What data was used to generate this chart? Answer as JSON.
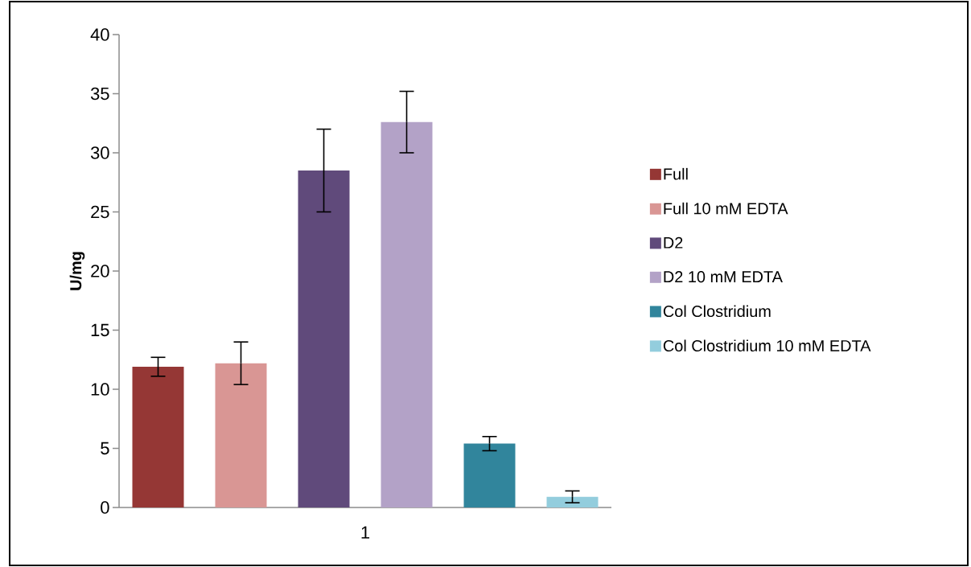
{
  "chart_data": {
    "type": "bar",
    "ylabel": "U/mg",
    "categories": [
      "1"
    ],
    "ylim": [
      0,
      40
    ],
    "yticks": [
      0,
      5,
      10,
      15,
      20,
      25,
      30,
      35,
      40
    ],
    "legend": "right",
    "series": [
      {
        "name": "Full",
        "color": "#953735",
        "values": [
          11.9
        ],
        "errors": [
          0.8
        ]
      },
      {
        "name": "Full 10 mM EDTA",
        "color": "#d99694",
        "values": [
          12.2
        ],
        "errors": [
          1.8
        ]
      },
      {
        "name": "D2",
        "color": "#604a7b",
        "values": [
          28.5
        ],
        "errors": [
          3.5
        ]
      },
      {
        "name": "D2 10 mM EDTA",
        "color": "#b3a2c7",
        "values": [
          32.6
        ],
        "errors": [
          2.6
        ]
      },
      {
        "name": "Col Clostridium",
        "color": "#31859c",
        "values": [
          5.4
        ],
        "errors": [
          0.6
        ]
      },
      {
        "name": "Col Clostridium 10 mM EDTA",
        "color": "#93cddd",
        "values": [
          0.9
        ],
        "errors": [
          0.5
        ]
      }
    ]
  }
}
